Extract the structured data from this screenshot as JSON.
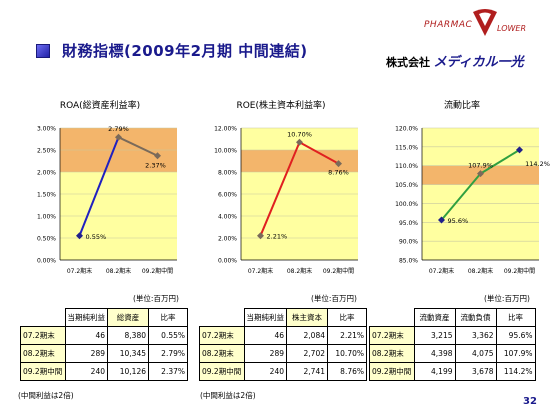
{
  "header": {
    "title": "財務指標(2009年2月期 中間連結)",
    "company_prefix": "株式会社",
    "company_name": "メディカル一光",
    "logo_text": "PHARMAC",
    "logo_text2": "LOWER",
    "page_number": "32"
  },
  "colors": {
    "band": "#f3b56b",
    "plot_bg": "#ffffa0",
    "line_roa": "#2020c0",
    "line_roe": "#e02020",
    "line_current": "#30a040",
    "marker": "#7a6a5a"
  },
  "chart_data": [
    {
      "type": "line",
      "title": "ROA(総資産利益率)",
      "categories": [
        "07.2期末",
        "08.2期末",
        "09.2期中間"
      ],
      "values": [
        0.55,
        2.79,
        2.37
      ],
      "value_labels": [
        "0.55%",
        "2.79%",
        "2.37%"
      ],
      "yticks": [
        "0.00%",
        "0.50%",
        "1.00%",
        "1.50%",
        "2.00%",
        "2.50%",
        "3.00%"
      ],
      "ylim": [
        0,
        3.0
      ],
      "band": [
        2.0,
        3.0
      ]
    },
    {
      "type": "line",
      "title": "ROE(株主資本利益率)",
      "categories": [
        "07.2期末",
        "08.2期末",
        "09.2期中間"
      ],
      "values": [
        2.21,
        10.7,
        8.76
      ],
      "value_labels": [
        "2.21%",
        "10.70%",
        "8.76%"
      ],
      "yticks": [
        "0.00%",
        "2.00%",
        "4.00%",
        "6.00%",
        "8.00%",
        "10.00%",
        "12.00%"
      ],
      "ylim": [
        0,
        12.0
      ],
      "band": [
        8.0,
        10.0
      ]
    },
    {
      "type": "line",
      "title": "流動比率",
      "categories": [
        "07.2期末",
        "08.2期末",
        "09.2期中間"
      ],
      "values": [
        95.6,
        107.9,
        114.2
      ],
      "value_labels": [
        "95.6%",
        "107.9%",
        "114.2%"
      ],
      "yticks": [
        "85.0%",
        "90.0%",
        "95.0%",
        "100.0%",
        "105.0%",
        "110.0%",
        "115.0%",
        "120.0%"
      ],
      "ylim": [
        85,
        120
      ],
      "band": [
        105,
        110
      ]
    }
  ],
  "units": [
    "(単位:百万円)",
    "(単位:百万円)",
    "(単位:百万円)"
  ],
  "tables": [
    {
      "headers": [
        "当期純利益",
        "総資産",
        "比率"
      ],
      "rows": [
        [
          "07.2期末",
          "46",
          "8,380",
          "0.55%"
        ],
        [
          "08.2期末",
          "289",
          "10,345",
          "2.79%"
        ],
        [
          "09.2期中間",
          "240",
          "10,126",
          "2.37%"
        ]
      ]
    },
    {
      "headers": [
        "当期純利益",
        "株主資本",
        "比率"
      ],
      "rows": [
        [
          "07.2期末",
          "46",
          "2,084",
          "2.21%"
        ],
        [
          "08.2期末",
          "289",
          "2,702",
          "10.70%"
        ],
        [
          "09.2期中間",
          "240",
          "2,741",
          "8.76%"
        ]
      ]
    },
    {
      "headers": [
        "流動資産",
        "流動負債",
        "比率"
      ],
      "rows": [
        [
          "07.2期末",
          "3,215",
          "3,362",
          "95.6%"
        ],
        [
          "08.2期末",
          "4,398",
          "4,075",
          "107.9%"
        ],
        [
          "09.2期中間",
          "4,199",
          "3,678",
          "114.2%"
        ]
      ]
    }
  ],
  "notes": [
    "(中間利益は2倍)",
    "(中間利益は2倍)"
  ]
}
